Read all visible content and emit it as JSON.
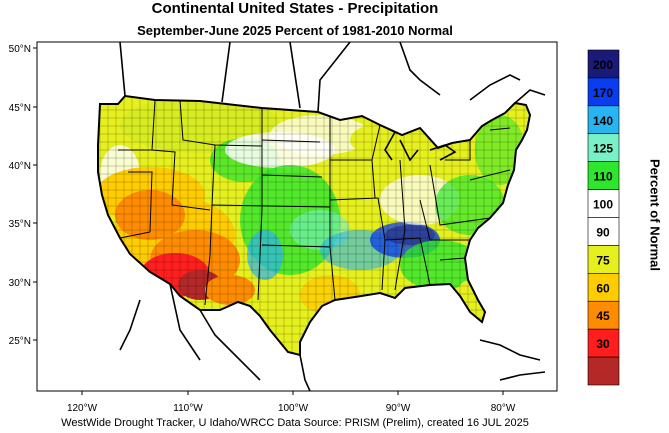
{
  "title": "Continental United States - Precipitation",
  "subtitle": "September-June 2025  Percent of 1981-2010 Normal",
  "lat_labels": [
    "50°N",
    "45°N",
    "40°N",
    "35°N",
    "30°N",
    "25°N"
  ],
  "lon_labels": [
    "120°W",
    "110°W",
    "100°W",
    "90°W",
    "80°W"
  ],
  "colorbar": {
    "title": "Percent of Normal",
    "bins": [
      {
        "label": "200",
        "color": "#1a1a78"
      },
      {
        "label": "170",
        "color": "#0a3cf0"
      },
      {
        "label": "140",
        "color": "#28b4f0"
      },
      {
        "label": "125",
        "color": "#78f0c8"
      },
      {
        "label": "110",
        "color": "#2ee62e"
      },
      {
        "label": "100",
        "color": "#ffffff"
      },
      {
        "label": "90",
        "color": "#ffffff"
      },
      {
        "label": "75",
        "color": "#e6f01e"
      },
      {
        "label": "60",
        "color": "#ffcc00"
      },
      {
        "label": "45",
        "color": "#ff8c00"
      },
      {
        "label": "30",
        "color": "#ff1e1e"
      },
      {
        "label": "",
        "color": "#b42828"
      }
    ]
  },
  "footer": "WestWide Drought Tracker, U Idaho/WRCC Data Source: PRISM (Prelim), created 16 JUL 2025",
  "chart_data": {
    "type": "heatmap",
    "title": "Continental United States - Precipitation",
    "subtitle": "September-June 2025  Percent of 1981-2010 Normal",
    "x_ticks": [
      "120°W",
      "110°W",
      "100°W",
      "90°W",
      "80°W"
    ],
    "y_ticks": [
      "50°N",
      "45°N",
      "40°N",
      "35°N",
      "30°N",
      "25°N"
    ],
    "colorbar_title": "Percent of Normal",
    "colorbar_breaks": [
      30,
      45,
      60,
      75,
      90,
      100,
      110,
      125,
      140,
      170,
      200
    ]
  }
}
